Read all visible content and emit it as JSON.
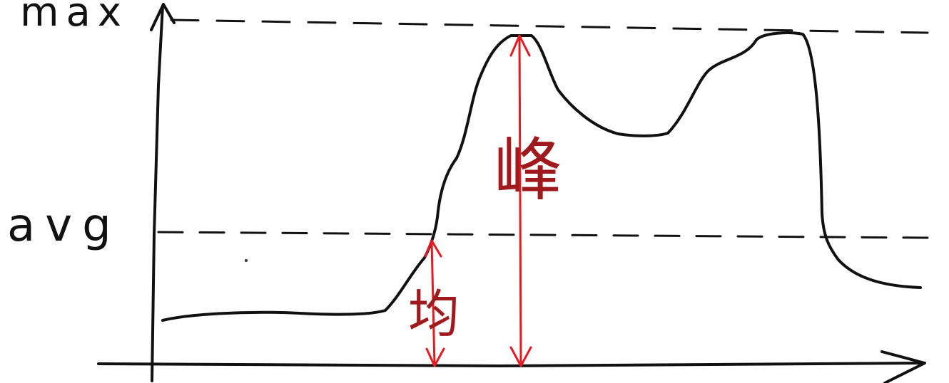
{
  "labels": {
    "max": "max",
    "avg": "avg",
    "average_marker": "均",
    "peak_marker": "峰"
  },
  "colors": {
    "ink": "#111111",
    "annotation": "#e31b23",
    "annotation_text": "#a01a1d",
    "background": "#ffffff"
  },
  "icons": {
    "x_axis_end": "arrow-right-icon",
    "y_axis_end": "arrow-up-icon",
    "measure": "double-arrow-icon"
  }
}
